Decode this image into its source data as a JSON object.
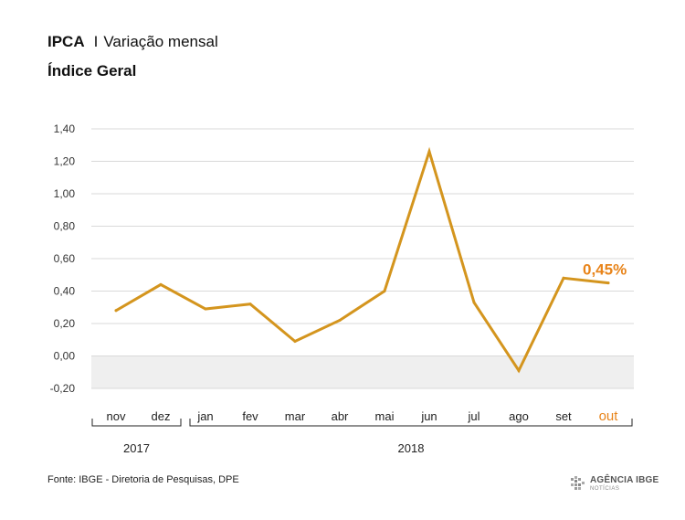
{
  "header": {
    "title": "IPCA",
    "separator": "I",
    "title_suffix": "Variação mensal",
    "subtitle": "Índice Geral"
  },
  "chart_data": {
    "type": "line",
    "categories": [
      "nov",
      "dez",
      "jan",
      "fev",
      "mar",
      "abr",
      "mai",
      "jun",
      "jul",
      "ago",
      "set",
      "out"
    ],
    "year_groups": [
      {
        "label": "2017",
        "categories": [
          "nov",
          "dez"
        ]
      },
      {
        "label": "2018",
        "categories": [
          "jan",
          "fev",
          "mar",
          "abr",
          "mai",
          "jun",
          "jul",
          "ago",
          "set",
          "out"
        ]
      }
    ],
    "series": [
      {
        "values": [
          0.28,
          0.44,
          0.29,
          0.32,
          0.09,
          0.22,
          0.4,
          1.26,
          0.33,
          -0.09,
          0.48,
          0.45
        ]
      }
    ],
    "ylim": [
      -0.2,
      1.4
    ],
    "yticks": [
      -0.2,
      0.0,
      0.2,
      0.4,
      0.6,
      0.8,
      1.0,
      1.2,
      1.4
    ],
    "ytick_labels": [
      "-0,20",
      "0,00",
      "0,20",
      "0,40",
      "0,60",
      "0,80",
      "1,00",
      "1,20",
      "1,40"
    ],
    "highlight_category": "out",
    "annotation": "0,45%",
    "line_color": "#D4951E",
    "highlight_color": "#E8841A",
    "negative_band_color": "#EFEFEF",
    "grid": true
  },
  "footer": {
    "source": "Fonte: IBGE - Diretoria de Pesquisas, DPE",
    "logo_title": "AGÊNCIA IBGE",
    "logo_sub": "NOTÍCIAS"
  }
}
